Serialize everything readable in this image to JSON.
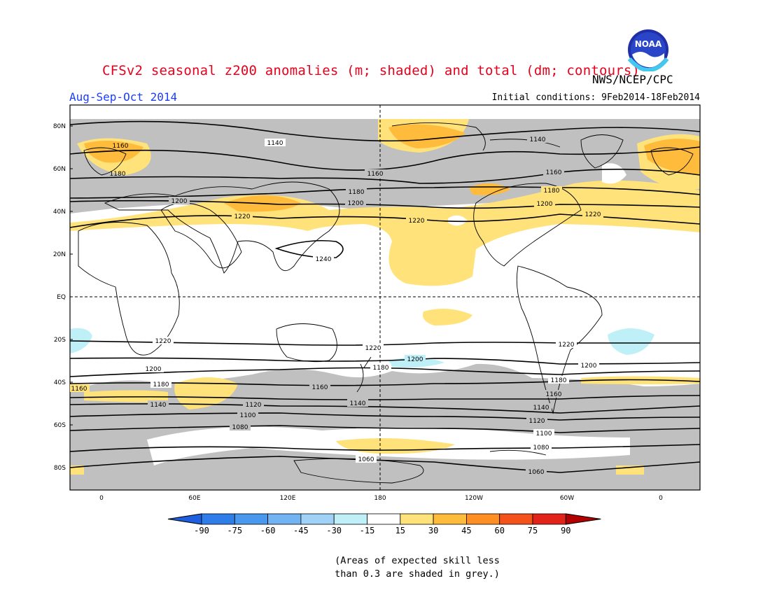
{
  "header": {
    "title": "CFSv2 seasonal z200 anomalies (m; shaded) and total (dm; contours)",
    "agency": "NWS/NCEP/CPC",
    "logo_text": "NOAA",
    "season": "Aug-Sep-Oct 2014",
    "initial_conditions": "Initial conditions: 9Feb2014-18Feb2014"
  },
  "map": {
    "lat_labels": [
      "80N",
      "60N",
      "40N",
      "20N",
      "EQ",
      "20S",
      "40S",
      "60S",
      "80S"
    ],
    "lon_labels": [
      "0",
      "60E",
      "120E",
      "180",
      "120W",
      "60W",
      "0"
    ],
    "contour_labels": [
      "1140",
      "1160",
      "1180",
      "1200",
      "1220",
      "1240",
      "1140",
      "1160",
      "1180",
      "1200",
      "1220",
      "1160",
      "1180",
      "1200",
      "1220",
      "1220",
      "1200",
      "1180",
      "1160",
      "1140",
      "1120",
      "1100",
      "1080",
      "1060",
      "1220",
      "1200",
      "1180",
      "1160",
      "1140",
      "1120",
      "1100",
      "1080",
      "1060"
    ]
  },
  "colorbar": {
    "ticks": [
      "-90",
      "-75",
      "-60",
      "-45",
      "-30",
      "-15",
      "15",
      "30",
      "45",
      "60",
      "75",
      "90"
    ],
    "colors": [
      "#1e5fe0",
      "#2f7de8",
      "#4a97ee",
      "#72b4f3",
      "#a0d2f8",
      "#bff0f8",
      "#ffffff",
      "#ffe27a",
      "#ffbb3c",
      "#ff8f22",
      "#f4521a",
      "#e2231a",
      "#b20000"
    ]
  },
  "note": {
    "line1": "(Areas of expected skill less",
    "line2": "than 0.3 are shaded in grey.)"
  }
}
